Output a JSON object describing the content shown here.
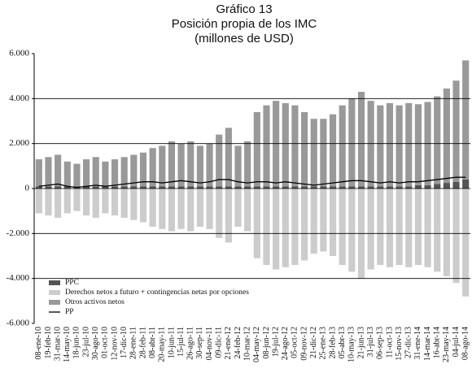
{
  "chart_data": {
    "type": "bar",
    "stacked": true,
    "title": "Gráfico 13",
    "subtitle": "Posición propia de los IMC",
    "units": "(millones de USD)",
    "categories": [
      "08-ene-10",
      "19-feb-10",
      "31-mar-10",
      "14-may-10",
      "18-jun-10",
      "23-jul-10",
      "30-ago-10",
      "01-oct-10",
      "12-nov-10",
      "17-dic-10",
      "28-ene-11",
      "28-feb-11",
      "08-abr-11",
      "20-may-11",
      "10-jun-11",
      "15-jul-11",
      "26-ago-11",
      "30-sep-11",
      "04-nov-11",
      "09-dic-11",
      "21-ene-12",
      "24-feb-12",
      "10-mar-12",
      "04-may-12",
      "08-jun-12",
      "19-jul-12",
      "24-ago-12",
      "05-oct-12",
      "09-nov-12",
      "21-dic-12",
      "25-ene-13",
      "28-feb-13",
      "05-abr-13",
      "10-may-13",
      "21-jun-13",
      "31-jul-13",
      "06-sep-13",
      "11-oct-13",
      "15-nov-13",
      "27-dic-13",
      "31-ene-14",
      "14-mar-14",
      "16-abr-14",
      "23-may-14",
      "04-jul-14",
      "08-ago-14"
    ],
    "series": [
      {
        "name": "PPC",
        "color": "#555555",
        "values": [
          100,
          100,
          100,
          100,
          100,
          100,
          100,
          100,
          100,
          100,
          100,
          100,
          100,
          100,
          100,
          100,
          100,
          100,
          100,
          100,
          100,
          100,
          100,
          100,
          100,
          100,
          100,
          100,
          100,
          100,
          100,
          100,
          100,
          100,
          100,
          100,
          100,
          100,
          100,
          100,
          150,
          150,
          200,
          250,
          300,
          400
        ]
      },
      {
        "name": "Derechos netos a futuro + contingencias netas por opciones",
        "color": "#cccccc",
        "values": [
          -1100,
          -1200,
          -1300,
          -1100,
          -1000,
          -1200,
          -1300,
          -1100,
          -1200,
          -1300,
          -1400,
          -1500,
          -1700,
          -1800,
          -1900,
          -1800,
          -1900,
          -1700,
          -1800,
          -2200,
          -2400,
          -1700,
          -1900,
          -3100,
          -3400,
          -3600,
          -3500,
          -3400,
          -3200,
          -2900,
          -2800,
          -3000,
          -3400,
          -3700,
          -4000,
          -3600,
          -3400,
          -3500,
          -3400,
          -3500,
          -3400,
          -3500,
          -3700,
          -3900,
          -4200,
          -4800
        ]
      },
      {
        "name": "Otros activos netos",
        "color": "#999999",
        "values": [
          1200,
          1300,
          1400,
          1100,
          1000,
          1200,
          1300,
          1100,
          1200,
          1300,
          1400,
          1500,
          1700,
          1800,
          2000,
          1900,
          2000,
          1800,
          1900,
          2300,
          2600,
          1800,
          2000,
          3300,
          3600,
          3800,
          3700,
          3600,
          3300,
          3000,
          3000,
          3200,
          3600,
          3900,
          4200,
          3800,
          3600,
          3700,
          3600,
          3700,
          3600,
          3700,
          3900,
          4200,
          4500,
          5300
        ]
      },
      {
        "name": "PP",
        "color": "#000000",
        "line": true,
        "values": [
          100,
          150,
          200,
          100,
          50,
          100,
          150,
          100,
          150,
          200,
          250,
          300,
          300,
          250,
          300,
          350,
          300,
          250,
          300,
          400,
          400,
          300,
          250,
          300,
          300,
          250,
          300,
          250,
          200,
          150,
          200,
          250,
          300,
          350,
          350,
          300,
          250,
          300,
          250,
          300,
          300,
          350,
          400,
          450,
          500,
          500
        ]
      }
    ],
    "ylim": [
      -6000,
      6000
    ],
    "yticks": [
      {
        "value": 6000,
        "label": "6.000"
      },
      {
        "value": 4000,
        "label": "4.000"
      },
      {
        "value": 2000,
        "label": "2.000"
      },
      0,
      {
        "value": -2000,
        "label": "-2.000"
      },
      {
        "value": -4000,
        "label": "-4.000"
      },
      {
        "value": -6000,
        "label": "-6.000"
      }
    ],
    "grid": true,
    "legend": "lower left"
  }
}
